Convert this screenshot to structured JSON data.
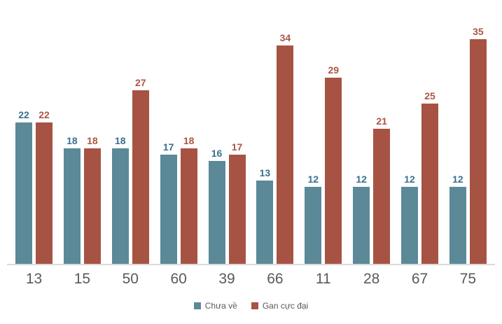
{
  "chart_data": {
    "type": "bar",
    "title": "",
    "xlabel": "",
    "ylabel": "",
    "grid": false,
    "legend_position": "bottom",
    "ylim": [
      0,
      35
    ],
    "categories": [
      "13",
      "15",
      "50",
      "60",
      "39",
      "66",
      "11",
      "28",
      "67",
      "75"
    ],
    "series": [
      {
        "name": "Chưa về",
        "color": "#5b8998",
        "label_color": "#38708c",
        "values": [
          22,
          18,
          18,
          17,
          16,
          13,
          12,
          12,
          12,
          12
        ]
      },
      {
        "name": "Gan cực đại",
        "color": "#a65344",
        "label_color": "#ad5544",
        "values": [
          22,
          18,
          27,
          18,
          17,
          34,
          29,
          21,
          25,
          35
        ]
      }
    ]
  },
  "colors": {
    "axis_line": "#d9d9d9",
    "category_label": "#595959",
    "legend_text": "#595959",
    "background": "#ffffff"
  }
}
